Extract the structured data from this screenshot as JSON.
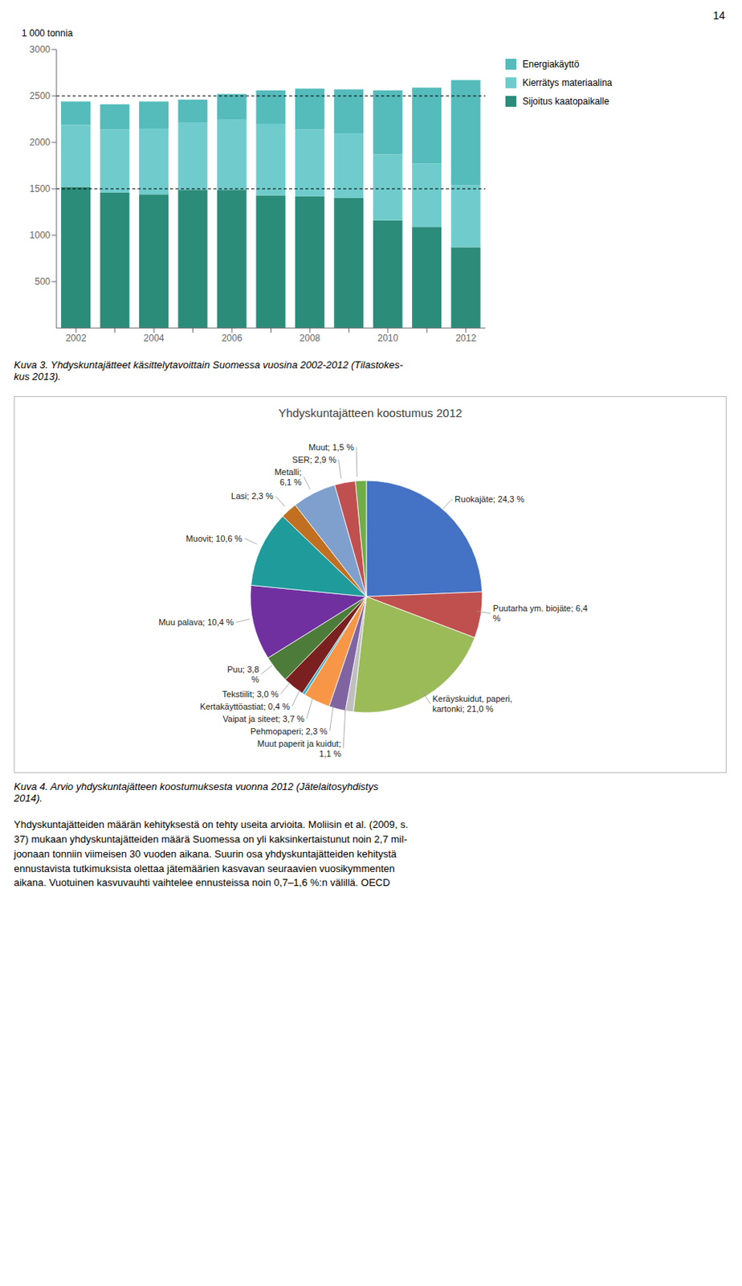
{
  "page_number": "14",
  "body_text": "Yhdyskuntajätteiden määrän kehityksestä on tehty useita arvioita. Moliisin et al. (2009, s.\n37) mukaan yhdyskuntajätteiden määrä Suomessa on yli kaksinkertaistunut noin 2,7 mil-\njoonaan tonniin viimeisen 30 vuoden aikana. Suurin osa yhdyskuntajätteiden kehitystä\nennustavista tutkimuksista olettaa jätemäärien kasvavan seuraavien vuosikymmenten\naikana. Vuotuinen kasvuvauhti vaihtelee ennusteissa noin 0,7–1,6 %:n välillä. OECD",
  "chart_data": [
    {
      "type": "bar",
      "stacked": true,
      "y_label": "1 000 tonnia",
      "categories": [
        "2002",
        null,
        "2004",
        null,
        "2006",
        null,
        "2008",
        null,
        "2010",
        null,
        "2012"
      ],
      "series": [
        {
          "name": "Sijoitus kaatopaikalle",
          "color": "#2b8c7a",
          "values": [
            1520,
            1460,
            1440,
            1490,
            1490,
            1430,
            1420,
            1400,
            1160,
            1090,
            870
          ]
        },
        {
          "name": "Kierrätys materiaalina",
          "color": "#70cccc",
          "values": [
            670,
            680,
            710,
            720,
            760,
            770,
            720,
            700,
            710,
            680,
            670
          ]
        },
        {
          "name": "Energiakäyttö",
          "color": "#55bbbb",
          "values": [
            250,
            270,
            290,
            250,
            270,
            360,
            440,
            470,
            690,
            820,
            1130
          ]
        }
      ],
      "ylim": [
        0,
        3000
      ],
      "yticks": [
        500,
        1000,
        1500,
        2000,
        2500,
        3000
      ],
      "reference_lines": [
        1500,
        2500
      ],
      "grid": false,
      "legend": "right",
      "annotations": [
        "Kuva 3.  Yhdyskuntajätteet käsittelytavoittain Suomessa vuosina 2002-2012 (Tilastokes-\nkus 2013)."
      ]
    },
    {
      "type": "pie",
      "title": "Yhdyskuntajätteen koostumus 2012",
      "values": [
        24.3,
        6.4,
        21.0,
        1.1,
        2.3,
        3.7,
        0.4,
        3.0,
        3.8,
        10.4,
        10.6,
        2.3,
        6.1,
        2.9,
        1.5
      ],
      "value_labels": [
        "Ruokajäte; 24,3 %",
        "Puutarha ym. biojäte; 6,4\n%",
        "Keräyskuidut, paperi,\nkartonki; 21,0 %",
        "Muut paperit ja kuidut;\n1,1 %",
        "Pehmopaperi; 2,3 %",
        "Vaipat ja siteet; 3,7 %",
        "Kertakäyttöastiat; 0,4 %",
        "Tekstiilit; 3,0 %",
        "Puu; 3,8\n%",
        "Muu palava; 10,4 %",
        "Muovit; 10,6 %",
        "Lasi; 2,3 %",
        "Metalli;\n6,1 %",
        "SER; 2,9 %",
        "Muut; 1,5 %"
      ],
      "colors": [
        "#4472c4",
        "#c0504d",
        "#9bbb59",
        "#bfbfbf",
        "#8064a2",
        "#f79646",
        "#31b0c9",
        "#7b2020",
        "#4d7c3a",
        "#7030a0",
        "#1f9b9b",
        "#c07020",
        "#7fa0cc",
        "#c05050",
        "#70ad47"
      ],
      "data_labels": true,
      "legend": false,
      "annotations": [
        "Kuva 4.  Arvio yhdyskuntajätteen koostumuksesta vuonna 2012 (Jätelaitosyhdistys\n2014)."
      ]
    }
  ]
}
